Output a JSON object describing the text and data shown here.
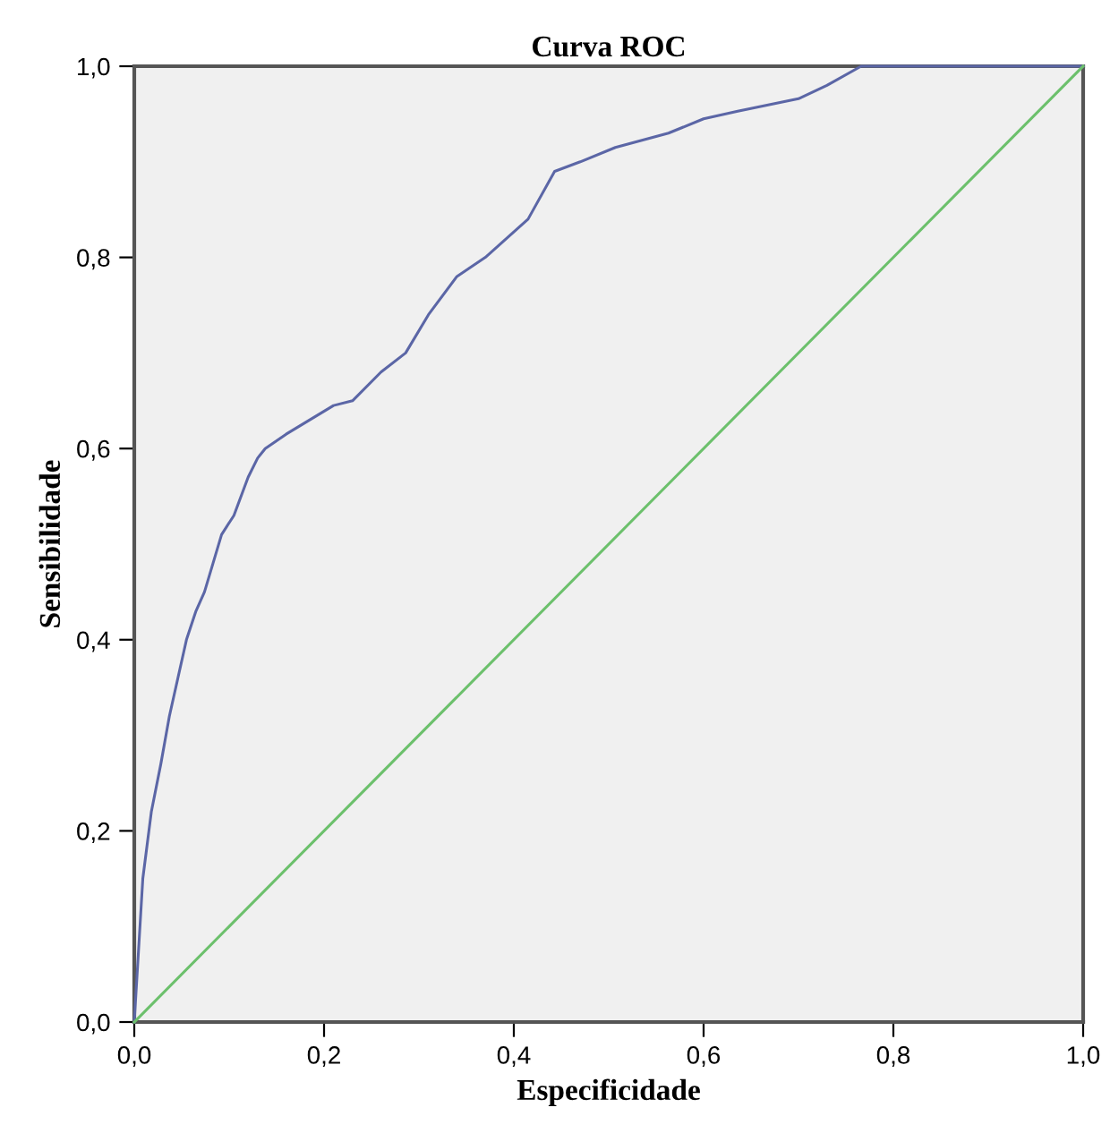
{
  "chart_data": {
    "type": "line",
    "title": "Curva ROC",
    "xlabel": "Especificidade",
    "ylabel": "Sensibilidade",
    "series": [
      {
        "color": "#5b66a6",
        "x": [
          0,
          0.009,
          0.018,
          0.028,
          0.037,
          0.046,
          0.055,
          0.065,
          0.074,
          0.083,
          0.092,
          0.105,
          0.12,
          0.13,
          0.138,
          0.16,
          0.185,
          0.21,
          0.23,
          0.26,
          0.286,
          0.31,
          0.34,
          0.37,
          0.415,
          0.443,
          0.47,
          0.507,
          0.563,
          0.6,
          0.636,
          0.7,
          0.73,
          0.766,
          1.0
        ],
        "values": [
          0,
          0.15,
          0.22,
          0.27,
          0.32,
          0.36,
          0.4,
          0.43,
          0.45,
          0.48,
          0.51,
          0.53,
          0.57,
          0.59,
          0.6,
          0.615,
          0.63,
          0.645,
          0.65,
          0.68,
          0.7,
          0.74,
          0.78,
          0.8,
          0.84,
          0.89,
          0.9,
          0.915,
          0.93,
          0.945,
          0.953,
          0.966,
          0.98,
          1.0,
          1.0
        ]
      },
      {
        "color": "#6cc06c",
        "x": [
          0,
          1
        ],
        "values": [
          0,
          1
        ]
      }
    ],
    "xlim": [
      0,
      1
    ],
    "ylim": [
      0,
      1
    ],
    "xticks": [
      {
        "value": 0,
        "label": "0,0"
      },
      {
        "value": 0.2,
        "label": "0,2"
      },
      {
        "value": 0.4,
        "label": "0,4"
      },
      {
        "value": 0.6,
        "label": "0,6"
      },
      {
        "value": 0.8,
        "label": "0,8"
      },
      {
        "value": 1,
        "label": "1,0"
      }
    ],
    "yticks": [
      {
        "value": 0,
        "label": "0,0"
      },
      {
        "value": 0.2,
        "label": "0,2"
      },
      {
        "value": 0.4,
        "label": "0,4"
      },
      {
        "value": 0.6,
        "label": "0,6"
      },
      {
        "value": 0.8,
        "label": "0,8"
      },
      {
        "value": 1,
        "label": "1,0"
      }
    ],
    "grid": false
  }
}
